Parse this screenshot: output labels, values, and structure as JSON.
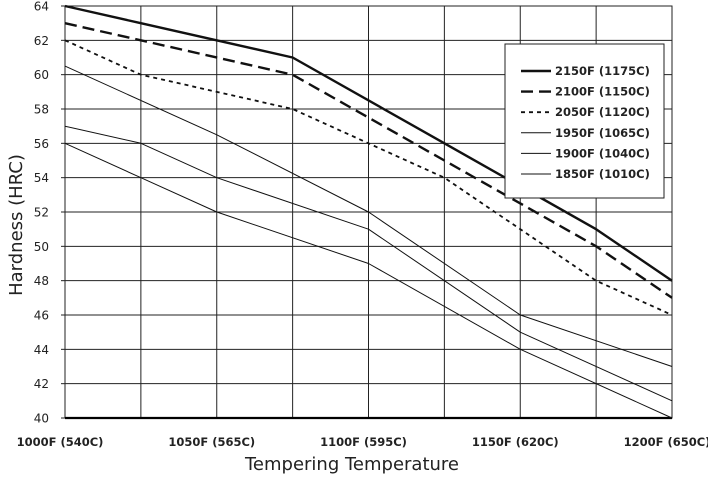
{
  "chart_data": {
    "type": "line",
    "title": "",
    "xlabel": "Tempering Temperature",
    "ylabel": "Hardness (HRC)",
    "categories": [
      "1000F (540C)",
      "1050F (565C)",
      "1100F (595C)",
      "1150F (620C)",
      "1200F (650C)"
    ],
    "x": [
      1000,
      1025,
      1050,
      1075,
      1100,
      1125,
      1150,
      1175,
      1200
    ],
    "ylim": [
      40,
      64
    ],
    "yticks": [
      40,
      42,
      44,
      46,
      48,
      50,
      52,
      54,
      56,
      58,
      60,
      62,
      64
    ],
    "grid": true,
    "legend_position": "top-right",
    "series": [
      {
        "name": "2150F (1175C)",
        "style": "thick-solid",
        "values": [
          64,
          63,
          null,
          61,
          null,
          56,
          null,
          51,
          48
        ]
      },
      {
        "name": "2100F (1150C)",
        "style": "long-dash",
        "values": [
          63,
          62,
          null,
          60,
          null,
          55,
          null,
          50,
          47
        ]
      },
      {
        "name": "2050F (1120C)",
        "style": "short-dash",
        "values": [
          62,
          60,
          null,
          58,
          null,
          54,
          null,
          48,
          46
        ]
      },
      {
        "name": "1950F (1065C)",
        "style": "thin-solid",
        "values": [
          60.5,
          null,
          56.5,
          null,
          52,
          null,
          46,
          null,
          43
        ]
      },
      {
        "name": "1900F (1040C)",
        "style": "thin-solid",
        "values": [
          57,
          56,
          54,
          null,
          51,
          null,
          45,
          null,
          41
        ]
      },
      {
        "name": "1850F (1010C)",
        "style": "thin-solid",
        "values": [
          56,
          54,
          52,
          null,
          49,
          null,
          44,
          null,
          40
        ]
      }
    ]
  }
}
